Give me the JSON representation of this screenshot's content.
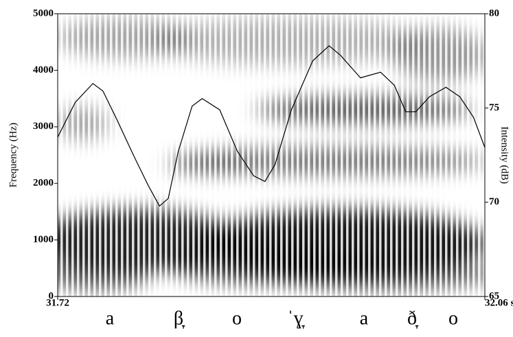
{
  "chart_data": {
    "type": "spectrogram",
    "ylabel": "Frequency (Hz)",
    "y2label": "Intensity (dB)",
    "xlim": [
      31.72,
      32.06
    ],
    "xticks": [
      31.72,
      {
        "value": 32.06,
        "label": "32.06 s"
      }
    ],
    "ylim": [
      0,
      5000
    ],
    "yticks": [
      0,
      1000,
      2000,
      3000,
      4000,
      5000
    ],
    "y2lim": [
      65,
      80
    ],
    "y2ticks": [
      65,
      70,
      75,
      80
    ],
    "segments": [
      "a",
      "β̞",
      "o",
      "ˈɣ̞",
      "a",
      "ð̞",
      "o"
    ],
    "x": [
      31.72,
      31.734,
      31.748,
      31.756,
      31.767,
      31.781,
      31.792,
      31.801,
      31.808,
      31.816,
      31.827,
      31.835,
      31.849,
      31.863,
      31.876,
      31.885,
      31.893,
      31.906,
      31.923,
      31.936,
      31.945,
      31.961,
      31.977,
      31.988,
      31.997,
      32.005,
      32.016,
      32.029,
      32.04,
      32.051,
      32.06
    ],
    "series": [
      {
        "color": "#000000",
        "axis": "y2",
        "values": [
          73.45,
          75.3,
          76.3,
          75.9,
          74.4,
          72.4,
          70.9,
          69.8,
          70.2,
          72.7,
          75.1,
          75.5,
          74.9,
          72.7,
          71.4,
          71.1,
          72.0,
          74.9,
          77.5,
          78.3,
          77.8,
          76.6,
          76.9,
          76.2,
          74.8,
          74.8,
          75.6,
          76.1,
          75.6,
          74.5,
          72.9
        ]
      }
    ]
  }
}
